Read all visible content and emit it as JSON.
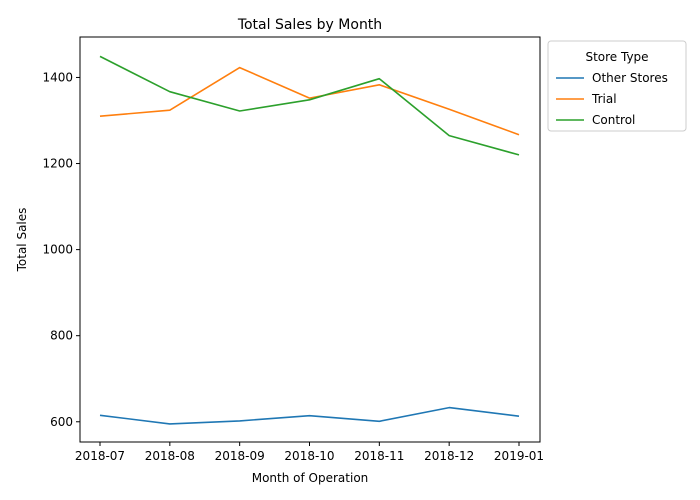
{
  "chart_data": {
    "type": "line",
    "title": "Total Sales by Month",
    "xlabel": "Month of Operation",
    "ylabel": "Total Sales",
    "categories": [
      "2018-07",
      "2018-08",
      "2018-09",
      "2018-10",
      "2018-11",
      "2018-12",
      "2019-01"
    ],
    "yticks": [
      600,
      800,
      1000,
      1200,
      1400
    ],
    "ylim": [
      553,
      1494
    ],
    "grid": false,
    "legend": {
      "title": "Store Type",
      "placement": "outside-top-right"
    },
    "series": [
      {
        "name": "Other Stores",
        "color": "#1f77b4",
        "values": [
          615,
          595,
          602,
          614,
          601,
          633,
          613
        ]
      },
      {
        "name": "Trial",
        "color": "#ff7f0e",
        "values": [
          1310,
          1324,
          1423,
          1352,
          1383,
          1326,
          1267
        ]
      },
      {
        "name": "Control",
        "color": "#2ca02c",
        "values": [
          1449,
          1367,
          1322,
          1348,
          1397,
          1265,
          1220
        ]
      }
    ]
  }
}
